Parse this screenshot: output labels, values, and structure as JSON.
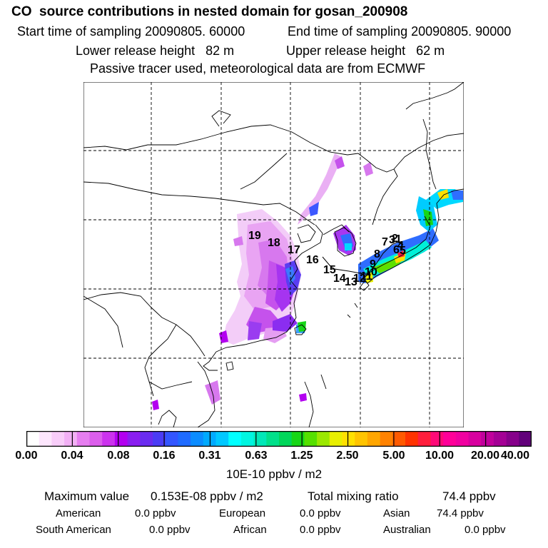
{
  "header": {
    "title": "CO  source contributions in nested domain for gosan_200908",
    "start_time": "Start time of sampling 20090805. 60000",
    "end_time": "End time of sampling 20090805. 90000",
    "lower_height": "Lower release height   82 m",
    "upper_height": "Upper release height   62 m",
    "tracer_note": "Passive tracer used, meteorological data are from ECMWF"
  },
  "colorbar": {
    "ticks": [
      "0.00",
      "0.04",
      "0.08",
      "0.16",
      "0.31",
      "0.63",
      "1.25",
      "2.50",
      "5.00",
      "10.00",
      "20.00",
      "40.00"
    ],
    "unit": "10E-10 ppbv / m2",
    "colors": [
      "#ffffff",
      "#fde6fd",
      "#f8cdf9",
      "#f2b0f5",
      "#e67ef0",
      "#dc5eec",
      "#cc33ee",
      "#b300f0",
      "#8a1ef0",
      "#6a2cf0",
      "#4b3cf5",
      "#3356ff",
      "#1f6bff",
      "#0b8cff",
      "#00aaff",
      "#00c8ff",
      "#00ffff",
      "#00f5e0",
      "#00e8b8",
      "#00e08a",
      "#00d65a",
      "#17d617",
      "#56e000",
      "#9be800",
      "#e8ef00",
      "#ffe000",
      "#ffc400",
      "#ffa600",
      "#ff8200",
      "#ff5a00",
      "#ff3300",
      "#ff1e3c",
      "#ff0a78",
      "#ff0099",
      "#f000a0",
      "#d8009f",
      "#c0009c",
      "#a40095",
      "#86008a",
      "#62007a"
    ]
  },
  "markers": [
    "1",
    "2",
    "3",
    "4",
    "5",
    "6",
    "7",
    "8",
    "9",
    "10",
    "11",
    "12",
    "13",
    "14",
    "15",
    "16",
    "17",
    "18",
    "19"
  ],
  "stats": {
    "max_label": "Maximum value",
    "max_value": "0.153E-08 ppbv / m2",
    "total_label": "Total mixing ratio",
    "total_value": "74.4 ppbv",
    "regions": [
      {
        "name": "American",
        "value": "0.0 ppbv"
      },
      {
        "name": "European",
        "value": "0.0 ppbv"
      },
      {
        "name": "Asian",
        "value": "74.4 ppbv"
      },
      {
        "name": "South American",
        "value": "0.0 ppbv"
      },
      {
        "name": "African",
        "value": "0.0 ppbv"
      },
      {
        "name": "Australian",
        "value": "0.0 ppbv"
      }
    ]
  }
}
